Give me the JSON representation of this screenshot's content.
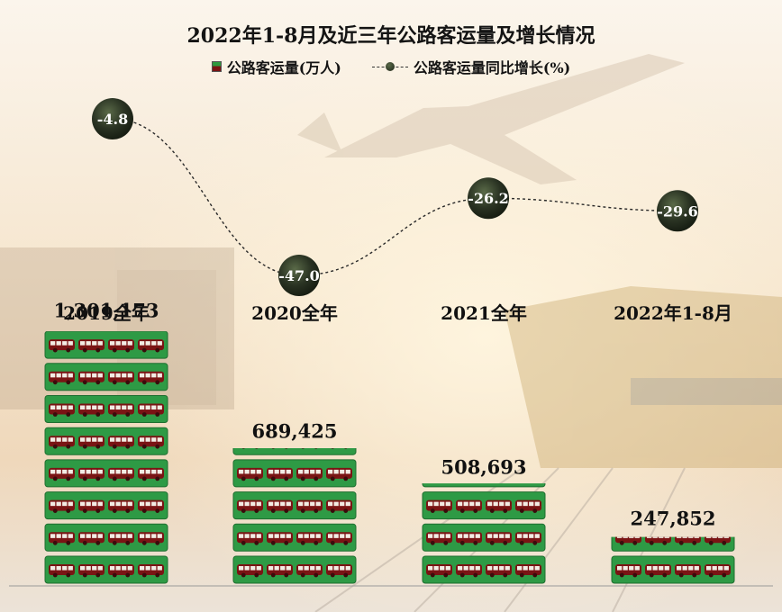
{
  "chart_data": {
    "type": "bar+line",
    "title": "2022年1-8月及近三年公路客运量及增长情况",
    "categories": [
      "2019全年",
      "2020全年",
      "2021全年",
      "2022年1-8月"
    ],
    "series": [
      {
        "name": "公路客运量(万人)",
        "type": "bar",
        "values": [
          1301173,
          689425,
          508693,
          247852
        ],
        "value_labels": [
          "1,301,173",
          "689,425",
          "508,693",
          "247,852"
        ]
      },
      {
        "name": "公路客运量同比增长(%)",
        "type": "line",
        "values": [
          -4.8,
          -47.0,
          -26.2,
          -29.6
        ],
        "value_labels": [
          "-4.8",
          "-47.0",
          "-26.2",
          "-29.6"
        ]
      }
    ],
    "bar_unit_per_row": 162647,
    "legend_position": "top-center",
    "grid": false,
    "colors": {
      "bar_tile": "#2e9a45",
      "bus": "#7a1414",
      "bubble": "#26301f",
      "line": "#2a2a2a"
    }
  }
}
